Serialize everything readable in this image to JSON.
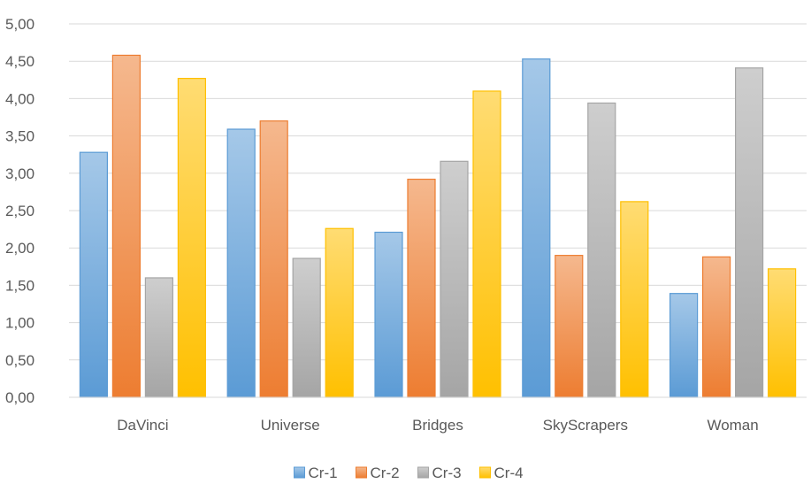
{
  "chart_data": {
    "type": "bar",
    "categories": [
      "DaVinci",
      "Universe",
      "Bridges",
      "SkyScrapers",
      "Woman"
    ],
    "series": [
      {
        "name": "Cr-1",
        "values": [
          3.28,
          3.59,
          2.21,
          4.53,
          1.39
        ],
        "color": "#5B9BD5"
      },
      {
        "name": "Cr-2",
        "values": [
          4.58,
          3.7,
          2.92,
          1.9,
          1.88
        ],
        "color": "#ED7D31"
      },
      {
        "name": "Cr-3",
        "values": [
          1.6,
          1.86,
          3.16,
          3.94,
          4.41
        ],
        "color": "#A5A5A5"
      },
      {
        "name": "Cr-4",
        "values": [
          4.27,
          2.26,
          4.1,
          2.62,
          1.72
        ],
        "color": "#FFC000"
      }
    ],
    "y_ticks": [
      "0,00",
      "0,50",
      "1,00",
      "1,50",
      "2,00",
      "2,50",
      "3,00",
      "3,50",
      "4,00",
      "4,50",
      "5,00"
    ],
    "ylim": [
      0,
      5
    ],
    "y_step": 0.5,
    "grid": true,
    "legend": "bottom",
    "title": "",
    "xlabel": "",
    "ylabel": ""
  }
}
